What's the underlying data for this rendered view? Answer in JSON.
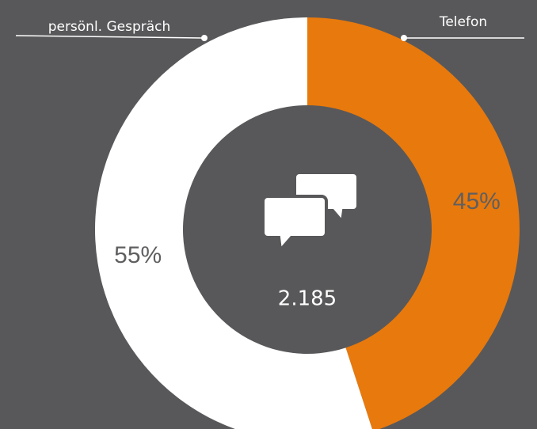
{
  "chart_data": {
    "type": "donut",
    "categories": [
      "Telefon",
      "persönl. Gespräch"
    ],
    "values": [
      45,
      55
    ],
    "value_labels": [
      "45%",
      "55%"
    ],
    "colors": [
      "#e8790c",
      "#ffffff"
    ],
    "center_label": "2.185"
  }
}
